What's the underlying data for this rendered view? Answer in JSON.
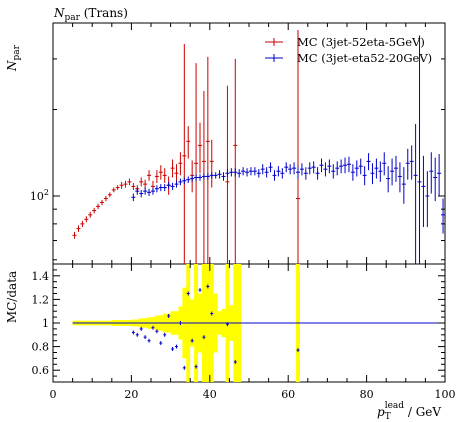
{
  "chart_data": {
    "type": "scatter",
    "title": "Npar (Trans)",
    "title_parts": {
      "main": "N",
      "sub": "par",
      "rest": " (Trans)"
    },
    "main": {
      "ylabel": "Npar",
      "ylabel_parts": {
        "main": "N",
        "sub": "par"
      },
      "yscale": "log",
      "ylim": [
        58,
        400
      ],
      "yticks": [
        {
          "value": 100,
          "label_base": "10",
          "label_exp": "2"
        }
      ],
      "legend_placement": "top-right"
    },
    "ratio": {
      "ylabel": "MC/data",
      "ylim": [
        0.5,
        1.5
      ],
      "yticks": [
        0.6,
        0.8,
        1,
        1.2,
        1.4
      ],
      "ytick_labels": [
        "0.6",
        "0.8",
        "1",
        "1.2",
        "1.4"
      ],
      "reference_line": 1
    },
    "x": {
      "label": "pT lead / GeV",
      "label_parts": {
        "p": "p",
        "sub": "T",
        "sup": "lead",
        "unit": " / GeV"
      },
      "lim": [
        0,
        100
      ],
      "ticks": [
        0,
        20,
        40,
        60,
        80,
        100
      ],
      "tick_labels": [
        "0",
        "20",
        "40",
        "60",
        "80",
        "100"
      ]
    },
    "series": [
      {
        "name": "MC (3jet-52eta-5GeV)",
        "color": "#cc0000",
        "points": [
          [
            5.5,
            73,
            2
          ],
          [
            6.5,
            77,
            2
          ],
          [
            7.5,
            80,
            2
          ],
          [
            8.5,
            83,
            2
          ],
          [
            9.5,
            86,
            2
          ],
          [
            10.5,
            89,
            2
          ],
          [
            11.5,
            92,
            2
          ],
          [
            12.5,
            95,
            2
          ],
          [
            13.5,
            98,
            2
          ],
          [
            14.5,
            101,
            2
          ],
          [
            15.5,
            105,
            2
          ],
          [
            16.5,
            107,
            2
          ],
          [
            17.5,
            109,
            3
          ],
          [
            18.5,
            110,
            3
          ],
          [
            19.5,
            112,
            3
          ],
          [
            20.5,
            108,
            3
          ],
          [
            21.5,
            106,
            3
          ],
          [
            22.5,
            112,
            4
          ],
          [
            23.5,
            110,
            4
          ],
          [
            24.5,
            118,
            5
          ],
          [
            25.5,
            108,
            5
          ],
          [
            26.5,
            117,
            6
          ],
          [
            27.5,
            121,
            7
          ],
          [
            28.5,
            118,
            7
          ],
          [
            29.5,
            109,
            8
          ],
          [
            30.5,
            125,
            9
          ],
          [
            31.5,
            120,
            9
          ],
          [
            32.5,
            130,
            12
          ],
          [
            33.5,
            138,
            200
          ],
          [
            34.5,
            155,
            20
          ],
          [
            35.5,
            118,
            15
          ],
          [
            36.5,
            130,
            160
          ],
          [
            37.5,
            150,
            30
          ],
          [
            38.5,
            132,
            100
          ],
          [
            39.5,
            155,
            150
          ],
          [
            40.5,
            132,
            25
          ],
          [
            44.5,
            112,
            130
          ],
          [
            46.5,
            150,
            150
          ],
          [
            62.5,
            98,
            280
          ]
        ]
      },
      {
        "name": "MC (3jet-eta52-20GeV)",
        "color": "#0000cc",
        "points": [
          [
            20.5,
            99,
            3
          ],
          [
            21.5,
            104,
            3
          ],
          [
            22.5,
            102,
            3
          ],
          [
            23.5,
            104,
            3
          ],
          [
            24.5,
            103,
            3
          ],
          [
            25.5,
            104,
            3
          ],
          [
            26.5,
            106,
            3
          ],
          [
            27.5,
            107,
            3
          ],
          [
            28.5,
            107,
            3
          ],
          [
            29.5,
            109,
            3
          ],
          [
            30.5,
            108,
            3
          ],
          [
            31.5,
            110,
            3
          ],
          [
            32.5,
            112,
            3
          ],
          [
            33.5,
            113,
            3
          ],
          [
            34.5,
            114,
            3
          ],
          [
            35.5,
            115,
            3
          ],
          [
            36.5,
            116,
            3
          ],
          [
            37.5,
            116,
            3
          ],
          [
            38.5,
            117,
            3
          ],
          [
            39.5,
            117,
            3
          ],
          [
            40.5,
            118,
            3
          ],
          [
            41.5,
            118,
            3
          ],
          [
            42.5,
            119,
            4
          ],
          [
            43.5,
            117,
            4
          ],
          [
            44.5,
            120,
            4
          ],
          [
            45.5,
            121,
            4
          ],
          [
            46.5,
            121,
            4
          ],
          [
            47.5,
            120,
            4
          ],
          [
            48.5,
            122,
            4
          ],
          [
            49.5,
            121,
            4
          ],
          [
            50.5,
            122,
            4
          ],
          [
            51.5,
            122,
            4
          ],
          [
            52.5,
            120,
            4
          ],
          [
            53.5,
            124,
            5
          ],
          [
            54.5,
            121,
            5
          ],
          [
            55.5,
            126,
            5
          ],
          [
            56.5,
            118,
            5
          ],
          [
            57.5,
            122,
            5
          ],
          [
            58.5,
            120,
            5
          ],
          [
            59.5,
            126,
            5
          ],
          [
            60.5,
            124,
            5
          ],
          [
            61.5,
            125,
            6
          ],
          [
            62.5,
            121,
            6
          ],
          [
            63.5,
            124,
            6
          ],
          [
            64.5,
            120,
            6
          ],
          [
            65.5,
            125,
            6
          ],
          [
            66.5,
            126,
            6
          ],
          [
            67.5,
            120,
            6
          ],
          [
            68.5,
            128,
            7
          ],
          [
            69.5,
            124,
            7
          ],
          [
            70.5,
            127,
            7
          ],
          [
            71.5,
            122,
            7
          ],
          [
            72.5,
            125,
            7
          ],
          [
            73.5,
            127,
            7
          ],
          [
            74.5,
            128,
            8
          ],
          [
            75.5,
            129,
            8
          ],
          [
            76.5,
            121,
            8
          ],
          [
            77.5,
            125,
            8
          ],
          [
            78.5,
            127,
            8
          ],
          [
            79.5,
            118,
            9
          ],
          [
            80.5,
            132,
            9
          ],
          [
            81.5,
            120,
            10
          ],
          [
            82.5,
            125,
            10
          ],
          [
            83.5,
            122,
            10
          ],
          [
            84.5,
            130,
            12
          ],
          [
            85.5,
            115,
            12
          ],
          [
            86.5,
            122,
            13
          ],
          [
            87.5,
            125,
            13
          ],
          [
            88.5,
            117,
            14
          ],
          [
            89.5,
            110,
            16
          ],
          [
            90.5,
            130,
            16
          ],
          [
            91.5,
            132,
            18
          ],
          [
            92.5,
            118,
            60
          ],
          [
            93.5,
            112,
            250
          ],
          [
            94.5,
            108,
            30
          ],
          [
            95.5,
            100,
            22
          ],
          [
            96.5,
            122,
            20
          ],
          [
            97.5,
            116,
            20
          ],
          [
            98.5,
            120,
            20
          ],
          [
            99.5,
            86,
            12
          ]
        ]
      }
    ],
    "ratio_points": {
      "series": "MC (3jet-52eta-5GeV)",
      "color": "#000000",
      "band_color": "#ffff00",
      "points": [
        [
          20.5,
          0.92
        ],
        [
          21.5,
          0.9
        ],
        [
          22.5,
          0.95
        ],
        [
          23.5,
          0.88
        ],
        [
          24.5,
          0.85
        ],
        [
          25.5,
          0.96
        ],
        [
          26.5,
          0.93
        ],
        [
          27.5,
          0.83
        ],
        [
          28.5,
          0.9
        ],
        [
          29.5,
          1.06
        ],
        [
          30.5,
          0.78
        ],
        [
          31.5,
          0.8
        ],
        [
          32.5,
          1.0
        ],
        [
          33.5,
          0.62
        ],
        [
          34.5,
          1.25
        ],
        [
          35.5,
          0.85
        ],
        [
          36.5,
          0.63
        ],
        [
          37.5,
          1.28
        ],
        [
          38.5,
          0.88
        ],
        [
          39.5,
          1.31
        ],
        [
          40.5,
          1.08
        ],
        [
          44.5,
          0.99
        ],
        [
          46.5,
          0.67
        ],
        [
          62.5,
          0.77
        ]
      ],
      "band": [
        [
          5,
          0.98,
          1.02
        ],
        [
          10,
          0.98,
          1.02
        ],
        [
          15,
          0.975,
          1.025
        ],
        [
          20,
          0.97,
          1.03
        ],
        [
          22,
          0.96,
          1.04
        ],
        [
          24,
          0.95,
          1.05
        ],
        [
          26,
          0.935,
          1.065
        ],
        [
          28,
          0.92,
          1.08
        ],
        [
          30,
          0.9,
          1.1
        ],
        [
          32,
          0.86,
          1.14
        ],
        [
          33,
          0.7,
          1.3
        ],
        [
          34,
          0.5,
          1.5
        ],
        [
          35,
          0.8,
          1.2
        ],
        [
          36,
          0.5,
          1.5
        ],
        [
          37,
          0.75,
          1.25
        ],
        [
          38,
          0.5,
          1.5
        ],
        [
          39,
          0.5,
          1.5
        ],
        [
          40,
          0.5,
          1.5
        ],
        [
          41,
          0.75,
          1.25
        ],
        [
          42,
          0.9,
          1.1
        ],
        [
          43,
          0.88,
          1.12
        ],
        [
          44,
          0.5,
          1.5
        ],
        [
          45,
          0.85,
          1.15
        ],
        [
          46,
          0.5,
          1.5
        ],
        [
          47,
          0.5,
          1.5
        ]
      ],
      "band_isolated": [
        [
          62,
          63,
          0.5,
          1.5
        ]
      ]
    }
  }
}
